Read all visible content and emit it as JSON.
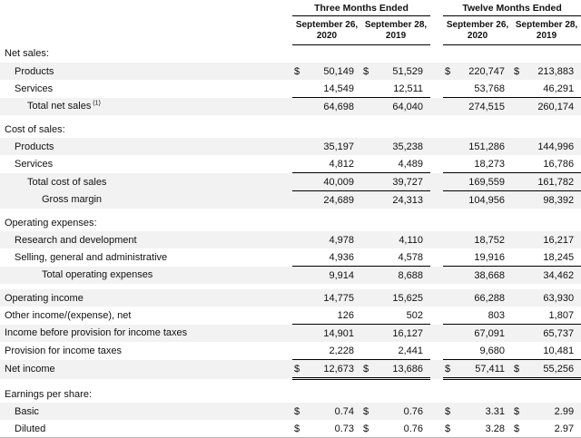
{
  "colors": {
    "row_shade": "#f2f2f2",
    "rule": "#000000",
    "text": "#111111",
    "bottom_divider": "#b5b5b5"
  },
  "table": {
    "currency_symbol": "$",
    "col_groups": [
      {
        "label": "Three Months Ended"
      },
      {
        "label": "Twelve Months Ended"
      }
    ],
    "col_headers": [
      {
        "line1": "September 26,",
        "line2": "2020"
      },
      {
        "line1": "September 28,",
        "line2": "2019"
      },
      {
        "line1": "September 26,",
        "line2": "2020"
      },
      {
        "line1": "September 28,",
        "line2": "2019"
      }
    ],
    "rows": [
      {
        "type": "section",
        "label": "Net sales:",
        "indent": 0,
        "shaded": false
      },
      {
        "type": "data",
        "label": "Products",
        "indent": 1,
        "shaded": true,
        "dollar": true,
        "values": [
          "50,149",
          "51,529",
          "220,747",
          "213,883"
        ]
      },
      {
        "type": "data",
        "label": "Services",
        "indent": 1,
        "shaded": false,
        "values": [
          "14,549",
          "12,511",
          "53,768",
          "46,291"
        ]
      },
      {
        "type": "data",
        "label": "Total net sales",
        "sup": "(1)",
        "indent": 2,
        "shaded": true,
        "top_border": true,
        "values": [
          "64,698",
          "64,040",
          "274,515",
          "260,174"
        ]
      },
      {
        "type": "spacer"
      },
      {
        "type": "section",
        "label": "Cost of sales:",
        "indent": 0,
        "shaded": false
      },
      {
        "type": "data",
        "label": "Products",
        "indent": 1,
        "shaded": true,
        "values": [
          "35,197",
          "35,238",
          "151,286",
          "144,996"
        ]
      },
      {
        "type": "data",
        "label": "Services",
        "indent": 1,
        "shaded": false,
        "values": [
          "4,812",
          "4,489",
          "18,273",
          "16,786"
        ]
      },
      {
        "type": "data",
        "label": "Total cost of sales",
        "indent": 2,
        "shaded": true,
        "top_border": true,
        "values": [
          "40,009",
          "39,727",
          "169,559",
          "161,782"
        ]
      },
      {
        "type": "data",
        "label": "Gross margin",
        "indent": 3,
        "shaded": true,
        "top_border": true,
        "values": [
          "24,689",
          "24,313",
          "104,956",
          "98,392"
        ]
      },
      {
        "type": "spacer"
      },
      {
        "type": "section",
        "label": "Operating expenses:",
        "indent": 0,
        "shaded": false
      },
      {
        "type": "data",
        "label": "Research and development",
        "indent": 1,
        "shaded": true,
        "values": [
          "4,978",
          "4,110",
          "18,752",
          "16,217"
        ]
      },
      {
        "type": "data",
        "label": "Selling, general and administrative",
        "indent": 1,
        "shaded": false,
        "values": [
          "4,936",
          "4,578",
          "19,916",
          "18,245"
        ]
      },
      {
        "type": "data",
        "label": "Total operating expenses",
        "indent": 3,
        "shaded": true,
        "top_border": true,
        "values": [
          "9,914",
          "8,688",
          "38,668",
          "34,462"
        ]
      },
      {
        "type": "spacer"
      },
      {
        "type": "data",
        "label": "Operating income",
        "indent": 0,
        "shaded": true,
        "values": [
          "14,775",
          "15,625",
          "66,288",
          "63,930"
        ]
      },
      {
        "type": "data",
        "label": "Other income/(expense), net",
        "indent": 0,
        "shaded": false,
        "values": [
          "126",
          "502",
          "803",
          "1,807"
        ]
      },
      {
        "type": "data",
        "label": "Income before provision for income taxes",
        "indent": 0,
        "shaded": true,
        "top_border": true,
        "values": [
          "14,901",
          "16,127",
          "67,091",
          "65,737"
        ]
      },
      {
        "type": "data",
        "label": "Provision for income taxes",
        "indent": 0,
        "shaded": false,
        "values": [
          "2,228",
          "2,441",
          "9,680",
          "10,481"
        ]
      },
      {
        "type": "data",
        "label": "Net income",
        "indent": 0,
        "shaded": true,
        "dollar": true,
        "top_border": true,
        "double_bottom": true,
        "values": [
          "12,673",
          "13,686",
          "57,411",
          "55,256"
        ]
      },
      {
        "type": "spacer"
      },
      {
        "type": "section",
        "label": "Earnings per share:",
        "indent": 0,
        "shaded": false
      },
      {
        "type": "data",
        "label": "Basic",
        "indent": 1,
        "shaded": true,
        "dollar": true,
        "values": [
          "0.74",
          "0.76",
          "3.31",
          "2.99"
        ]
      },
      {
        "type": "data",
        "label": "Diluted",
        "indent": 1,
        "shaded": false,
        "dollar": true,
        "values": [
          "0.73",
          "0.76",
          "3.28",
          "2.97"
        ]
      }
    ]
  }
}
